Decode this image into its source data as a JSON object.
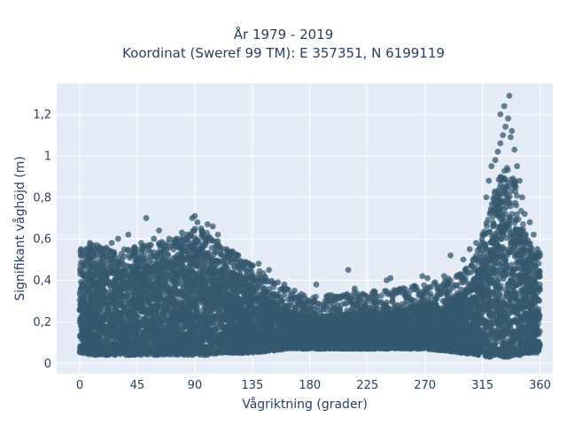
{
  "chart_data": {
    "type": "scatter",
    "title": "År 1979 - 2019",
    "subtitle": "Koordinat (Sweref 99 TM): E 357351, N 6199119",
    "xlabel": "Vågriktning (grader)",
    "ylabel": "Signifikant våghöjd (m)",
    "xlim": [
      -18,
      370
    ],
    "ylim": [
      -0.05,
      1.35
    ],
    "x_ticks": [
      0,
      45,
      90,
      135,
      180,
      225,
      270,
      315,
      360
    ],
    "x_tick_labels": [
      "0",
      "45",
      "90",
      "135",
      "180",
      "225",
      "270",
      "315",
      "360"
    ],
    "y_ticks": [
      0,
      0.2,
      0.4,
      0.6,
      0.8,
      1.0,
      1.2
    ],
    "y_tick_labels": [
      "0",
      "0,2",
      "0,4",
      "0,6",
      "0,8",
      "1",
      "1,2"
    ],
    "grid": true,
    "legend": "none",
    "marker_color": "#34586e",
    "plot_background": "#e5ecf6",
    "envelope": {
      "direction": [
        0,
        10,
        20,
        30,
        45,
        60,
        75,
        90,
        100,
        110,
        120,
        135,
        150,
        165,
        180,
        195,
        210,
        225,
        240,
        255,
        270,
        285,
        300,
        310,
        320,
        325,
        330,
        335,
        340,
        345,
        350,
        355,
        360
      ],
      "upper_dense": [
        0.44,
        0.48,
        0.46,
        0.45,
        0.47,
        0.48,
        0.5,
        0.55,
        0.53,
        0.48,
        0.44,
        0.38,
        0.3,
        0.25,
        0.22,
        0.23,
        0.24,
        0.25,
        0.25,
        0.27,
        0.28,
        0.3,
        0.34,
        0.42,
        0.62,
        0.75,
        0.82,
        0.85,
        0.8,
        0.65,
        0.5,
        0.45,
        0.45
      ],
      "lower_dense": [
        0.05,
        0.04,
        0.04,
        0.04,
        0.04,
        0.04,
        0.04,
        0.04,
        0.04,
        0.05,
        0.05,
        0.05,
        0.06,
        0.07,
        0.07,
        0.07,
        0.07,
        0.07,
        0.07,
        0.07,
        0.07,
        0.06,
        0.05,
        0.04,
        0.03,
        0.03,
        0.03,
        0.03,
        0.04,
        0.04,
        0.05,
        0.05,
        0.05
      ]
    },
    "outliers": [
      [
        1,
        0.55
      ],
      [
        5,
        0.53
      ],
      [
        8,
        0.58
      ],
      [
        12,
        0.52
      ],
      [
        18,
        0.53
      ],
      [
        25,
        0.58
      ],
      [
        30,
        0.6
      ],
      [
        33,
        0.5
      ],
      [
        38,
        0.62
      ],
      [
        42,
        0.55
      ],
      [
        48,
        0.58
      ],
      [
        52,
        0.7
      ],
      [
        58,
        0.6
      ],
      [
        62,
        0.64
      ],
      [
        66,
        0.55
      ],
      [
        70,
        0.6
      ],
      [
        75,
        0.58
      ],
      [
        80,
        0.63
      ],
      [
        84,
        0.62
      ],
      [
        88,
        0.7
      ],
      [
        90,
        0.71
      ],
      [
        92,
        0.68
      ],
      [
        95,
        0.65
      ],
      [
        100,
        0.67
      ],
      [
        104,
        0.66
      ],
      [
        108,
        0.62
      ],
      [
        115,
        0.55
      ],
      [
        122,
        0.5
      ],
      [
        128,
        0.48
      ],
      [
        140,
        0.48
      ],
      [
        148,
        0.45
      ],
      [
        155,
        0.39
      ],
      [
        160,
        0.38
      ],
      [
        168,
        0.35
      ],
      [
        185,
        0.38
      ],
      [
        195,
        0.3
      ],
      [
        210,
        0.45
      ],
      [
        215,
        0.36
      ],
      [
        230,
        0.3
      ],
      [
        240,
        0.4
      ],
      [
        243,
        0.41
      ],
      [
        255,
        0.34
      ],
      [
        268,
        0.42
      ],
      [
        272,
        0.41
      ],
      [
        278,
        0.39
      ],
      [
        285,
        0.42
      ],
      [
        290,
        0.52
      ],
      [
        300,
        0.5
      ],
      [
        305,
        0.55
      ],
      [
        310,
        0.58
      ],
      [
        315,
        0.62
      ],
      [
        318,
        0.8
      ],
      [
        320,
        0.88
      ],
      [
        322,
        0.95
      ],
      [
        325,
        0.98
      ],
      [
        327,
        1.02
      ],
      [
        329,
        1.06
      ],
      [
        331,
        1.1
      ],
      [
        333,
        1.14
      ],
      [
        335,
        1.18
      ],
      [
        336,
        1.29
      ],
      [
        338,
        1.12
      ],
      [
        340,
        1.03
      ],
      [
        342,
        0.95
      ],
      [
        344,
        0.88
      ],
      [
        346,
        0.8
      ],
      [
        348,
        0.72
      ],
      [
        352,
        0.68
      ],
      [
        355,
        0.62
      ],
      [
        358,
        0.55
      ],
      [
        360,
        0.52
      ],
      [
        332,
        1.24
      ],
      [
        329,
        1.2
      ],
      [
        337,
        1.09
      ]
    ]
  }
}
